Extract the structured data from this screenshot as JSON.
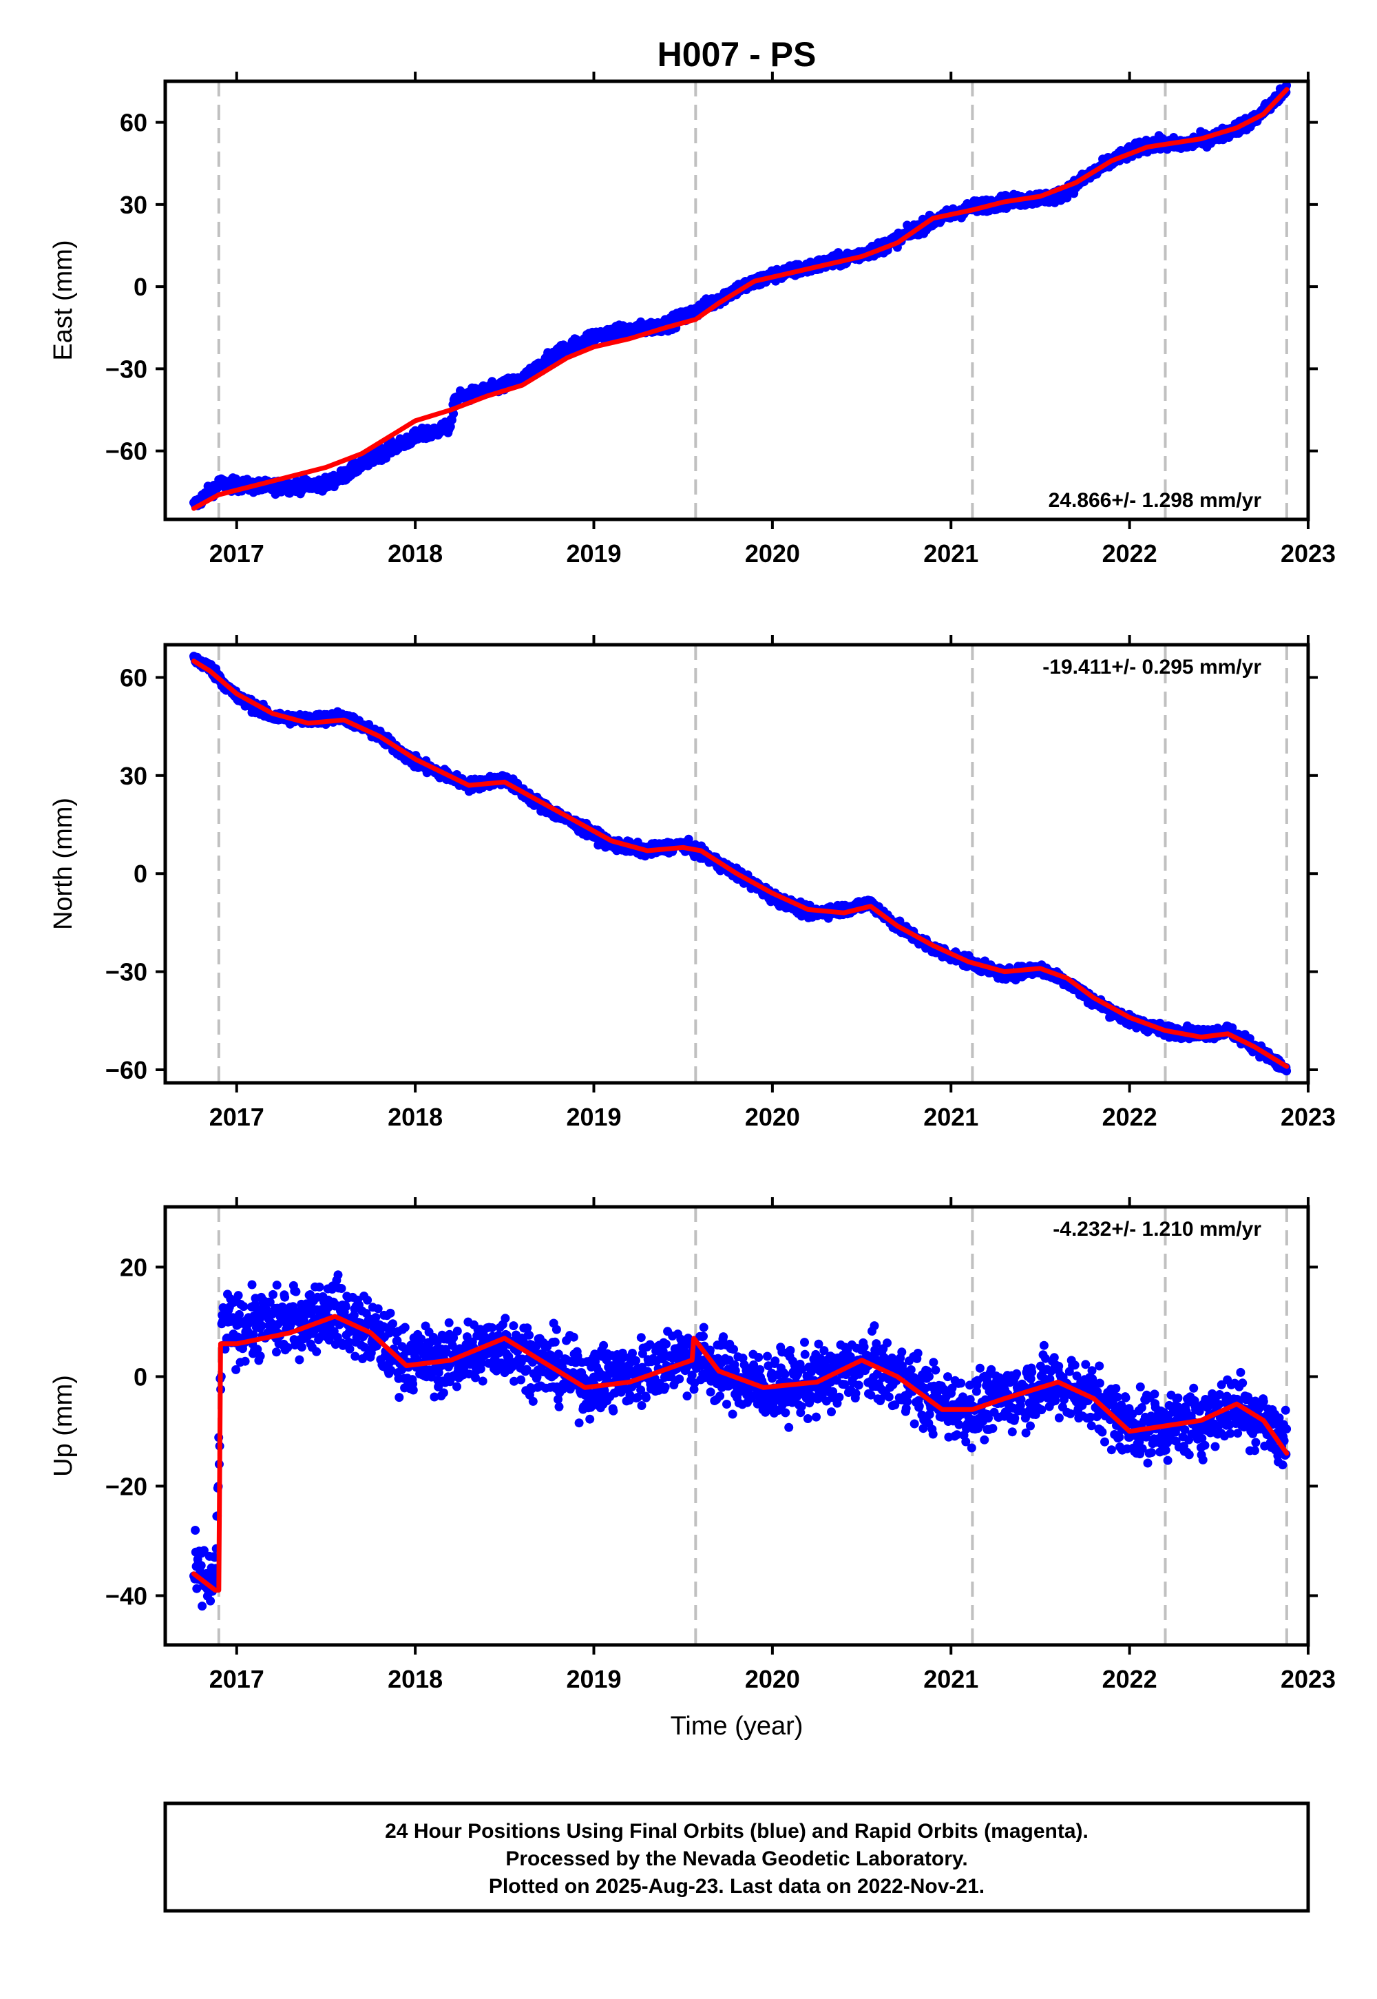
{
  "title": "H007 - PS",
  "footer": [
    "24 Hour Positions Using Final Orbits (blue) and Rapid Orbits (magenta).",
    "Processed by the Nevada Geodetic Laboratory.",
    "Plotted on 2025-Aug-23. Last data on 2022-Nov-21."
  ],
  "colors": {
    "final_orbits": "#0000ff",
    "model": "#ff0000",
    "event_line": "#c0c0c0",
    "frame": "#000000"
  },
  "chart_data": [
    {
      "type": "scatter",
      "title": "",
      "xlabel": "",
      "ylabel": "East (mm)",
      "xlim": [
        2016.6,
        2023.0
      ],
      "ylim": [
        -85,
        75
      ],
      "x_ticks": [
        "2017",
        "2018",
        "2019",
        "2020",
        "2021",
        "2022",
        "2023"
      ],
      "y_ticks": [
        -60,
        -30,
        0,
        30,
        60
      ],
      "y_tick_labels": [
        "−60",
        "−30",
        "0",
        "30",
        "60"
      ],
      "event_lines": [
        2016.9,
        2019.57,
        2021.12,
        2022.2,
        2022.88
      ],
      "rate_label": "24.866+/- 1.298 mm/yr",
      "rate_label_position": "bottom-right",
      "series": [
        {
          "role": "model",
          "color": "#ff0000",
          "x": [
            2016.76,
            2016.9,
            2017.2,
            2017.5,
            2017.7,
            2017.9,
            2018.0,
            2018.2,
            2018.4,
            2018.6,
            2018.7,
            2018.85,
            2019.0,
            2019.2,
            2019.4,
            2019.57,
            2019.7,
            2019.9,
            2020.1,
            2020.3,
            2020.5,
            2020.7,
            2020.9,
            2021.12,
            2021.3,
            2021.5,
            2021.7,
            2021.9,
            2022.1,
            2022.2,
            2022.4,
            2022.6,
            2022.75,
            2022.88
          ],
          "y": [
            -81,
            -76,
            -71,
            -66,
            -61,
            -53,
            -49,
            -45,
            -40,
            -36,
            -32,
            -26,
            -22,
            -19,
            -15,
            -12,
            -6,
            2,
            5,
            8,
            11,
            16,
            25,
            28,
            31,
            33,
            38,
            46,
            51,
            52,
            54,
            58,
            63,
            72
          ]
        },
        {
          "role": "observations",
          "color": "#0000ff",
          "noise_mm": 1.6,
          "x": [
            2016.76,
            2016.9,
            2017.1,
            2017.3,
            2017.5,
            2017.6,
            2017.8,
            2018.0,
            2018.2,
            2018.22,
            2018.4,
            2018.6,
            2018.8,
            2019.0,
            2019.2,
            2019.4,
            2019.57,
            2019.8,
            2020.0,
            2020.2,
            2020.4,
            2020.6,
            2020.9,
            2021.12,
            2021.3,
            2021.6,
            2021.9,
            2022.1,
            2022.3,
            2022.5,
            2022.7,
            2022.88
          ],
          "y": [
            -80,
            -72,
            -73,
            -73,
            -72,
            -69,
            -61,
            -55,
            -51,
            -41,
            -38,
            -34,
            -24,
            -18,
            -16,
            -14,
            -9,
            -1,
            4,
            7,
            10,
            14,
            24,
            29,
            31,
            33,
            46,
            52,
            52,
            55,
            61,
            72
          ]
        }
      ]
    },
    {
      "type": "scatter",
      "title": "",
      "xlabel": "",
      "ylabel": "North (mm)",
      "xlim": [
        2016.6,
        2023.0
      ],
      "ylim": [
        -64,
        70
      ],
      "x_ticks": [
        "2017",
        "2018",
        "2019",
        "2020",
        "2021",
        "2022",
        "2023"
      ],
      "y_ticks": [
        -60,
        -30,
        0,
        30,
        60
      ],
      "y_tick_labels": [
        "−60",
        "−30",
        "0",
        "30",
        "60"
      ],
      "event_lines": [
        2016.9,
        2019.57,
        2021.12,
        2022.2,
        2022.88
      ],
      "rate_label": "-19.411+/- 0.295 mm/yr",
      "rate_label_position": "top-right",
      "series": [
        {
          "role": "model",
          "color": "#ff0000",
          "x": [
            2016.76,
            2016.85,
            2017.0,
            2017.2,
            2017.4,
            2017.6,
            2017.8,
            2018.0,
            2018.3,
            2018.5,
            2018.7,
            2018.9,
            2019.1,
            2019.3,
            2019.5,
            2019.6,
            2019.8,
            2020.0,
            2020.2,
            2020.4,
            2020.55,
            2020.7,
            2020.9,
            2021.1,
            2021.3,
            2021.5,
            2021.65,
            2021.8,
            2022.0,
            2022.2,
            2022.4,
            2022.55,
            2022.7,
            2022.88
          ],
          "y": [
            65,
            62,
            55,
            49,
            46,
            47,
            42,
            35,
            27,
            28,
            22,
            16,
            10,
            7,
            8,
            7,
            0,
            -6,
            -11,
            -12,
            -10,
            -16,
            -22,
            -27,
            -30,
            -29,
            -32,
            -38,
            -44,
            -48,
            -50,
            -49,
            -53,
            -59
          ]
        },
        {
          "role": "observations",
          "color": "#0000ff",
          "noise_mm": 1.2,
          "x": [
            2016.76,
            2016.85,
            2017.0,
            2017.2,
            2017.4,
            2017.6,
            2017.8,
            2018.0,
            2018.3,
            2018.5,
            2018.7,
            2018.9,
            2019.1,
            2019.3,
            2019.5,
            2019.6,
            2019.8,
            2020.0,
            2020.2,
            2020.4,
            2020.55,
            2020.7,
            2020.9,
            2021.1,
            2021.3,
            2021.5,
            2021.65,
            2021.8,
            2022.0,
            2022.2,
            2022.4,
            2022.55,
            2022.7,
            2022.88
          ],
          "y": [
            66,
            63,
            54,
            48,
            47,
            48,
            42,
            34,
            27,
            29,
            21,
            15,
            9,
            7,
            9,
            6,
            0,
            -7,
            -12,
            -11,
            -9,
            -16,
            -23,
            -27,
            -31,
            -29,
            -33,
            -39,
            -45,
            -48,
            -49,
            -48,
            -53,
            -60
          ]
        }
      ]
    },
    {
      "type": "scatter",
      "title": "",
      "xlabel": "Time (year)",
      "ylabel": "Up (mm)",
      "xlim": [
        2016.6,
        2023.0
      ],
      "ylim": [
        -49,
        31
      ],
      "x_ticks": [
        "2017",
        "2018",
        "2019",
        "2020",
        "2021",
        "2022",
        "2023"
      ],
      "y_ticks": [
        -40,
        -20,
        0,
        20
      ],
      "y_tick_labels": [
        "−40",
        "−20",
        "0",
        "20"
      ],
      "event_lines": [
        2016.9,
        2019.57,
        2021.12,
        2022.2,
        2022.88
      ],
      "rate_label": "-4.232+/- 1.210 mm/yr",
      "rate_label_position": "top-right",
      "series": [
        {
          "role": "model",
          "color": "#ff0000",
          "x": [
            2016.76,
            2016.88,
            2016.9,
            2016.91,
            2017.0,
            2017.3,
            2017.55,
            2017.75,
            2017.95,
            2018.2,
            2018.5,
            2018.75,
            2018.95,
            2019.2,
            2019.55,
            2019.56,
            2019.7,
            2019.95,
            2020.25,
            2020.5,
            2020.7,
            2020.95,
            2021.12,
            2021.3,
            2021.6,
            2021.8,
            2022.0,
            2022.2,
            2022.4,
            2022.6,
            2022.75,
            2022.88
          ],
          "y": [
            -36,
            -39,
            -39,
            6,
            6,
            8,
            11,
            8,
            2,
            3,
            7,
            2,
            -2,
            -1,
            3,
            7,
            1,
            -2,
            -1,
            3,
            0,
            -6,
            -6,
            -4,
            -1,
            -4,
            -10,
            -9,
            -8,
            -5,
            -8,
            -14
          ]
        },
        {
          "role": "observations",
          "color": "#0000ff",
          "noise_mm": 4.2,
          "x": [
            2016.76,
            2016.88,
            2016.92,
            2017.0,
            2017.3,
            2017.55,
            2017.75,
            2017.95,
            2018.2,
            2018.5,
            2018.75,
            2018.95,
            2019.2,
            2019.5,
            2019.6,
            2019.7,
            2019.95,
            2020.25,
            2020.5,
            2020.7,
            2020.95,
            2021.12,
            2021.3,
            2021.6,
            2021.8,
            2022.0,
            2022.2,
            2022.4,
            2022.6,
            2022.75,
            2022.88
          ],
          "y": [
            -36,
            -38,
            9,
            9,
            10,
            12,
            8,
            3,
            3,
            6,
            2,
            -1,
            0,
            4,
            3,
            1,
            -2,
            -1,
            2,
            0,
            -5,
            -6,
            -4,
            -1,
            -4,
            -9,
            -9,
            -8,
            -5,
            -8,
            -12
          ]
        }
      ]
    }
  ]
}
